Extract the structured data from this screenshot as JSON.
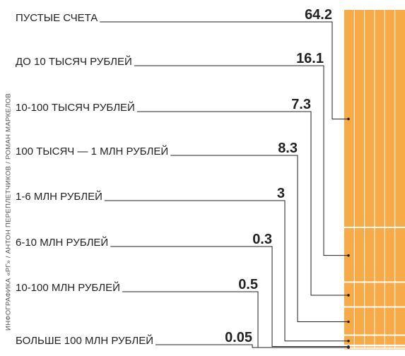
{
  "chart_data": {
    "type": "stacked-column",
    "credit": "ИНФОГРАФИКА «РГ» / АНТОН ПЕРЕПЛЕТЧИКОВ / РОМАН МАРКЕЛОВ",
    "categories": [
      "ПУСТЫЕ СЧЕТА",
      "ДО 10 ТЫСЯЧ РУБЛЕЙ",
      "10-100 ТЫСЯЧ РУБЛЕЙ",
      "100 ТЫСЯЧ — 1 МЛН РУБЛЕЙ",
      "1-6 МЛН РУБЛЕЙ",
      "6-10 МЛН РУБЛЕЙ",
      "10-100 МЛН РУБЛЕЙ",
      "БОЛЬШЕ 100 МЛН РУБЛЕЙ"
    ],
    "values": [
      64.2,
      16.1,
      7.3,
      8.3,
      3,
      0.3,
      0.5,
      0.05
    ],
    "color": "#f7aa45"
  }
}
